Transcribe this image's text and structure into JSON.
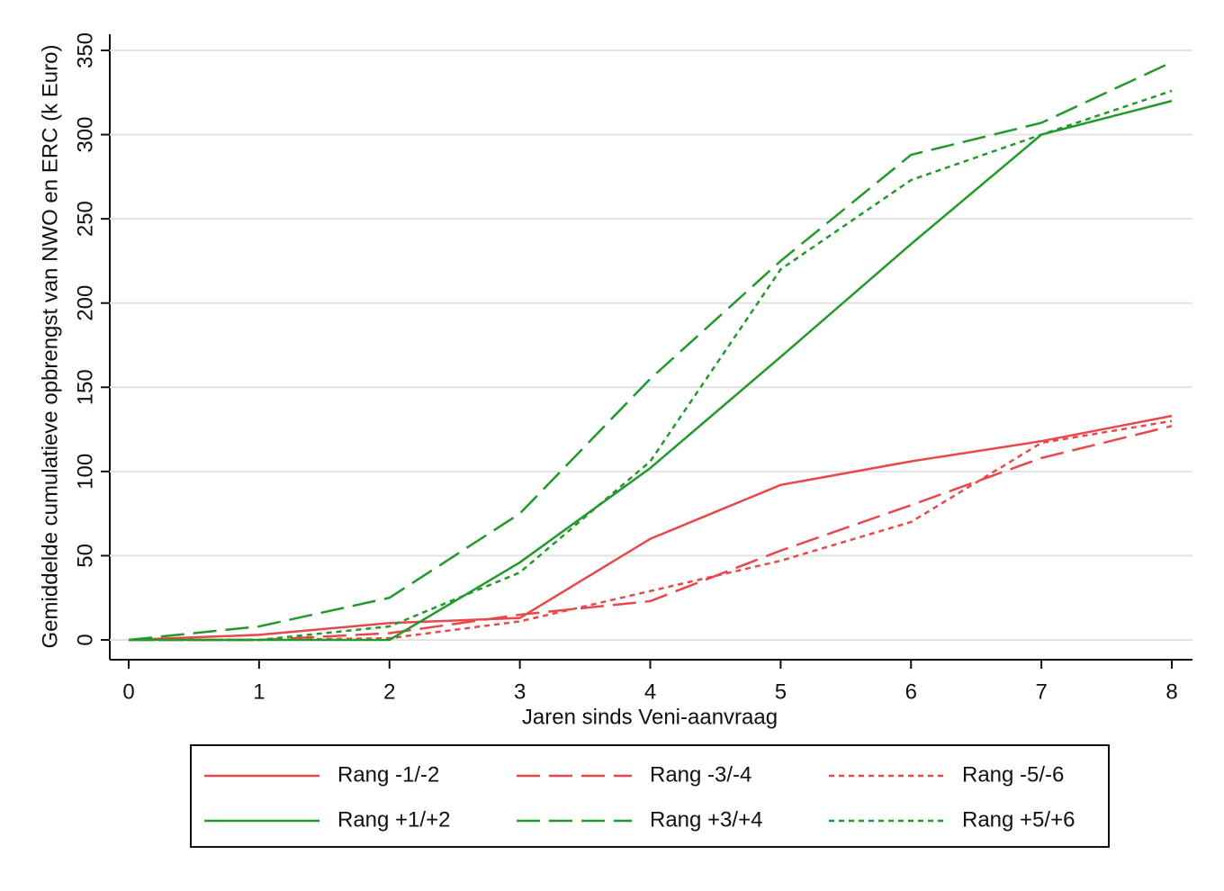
{
  "chart_data": {
    "type": "line",
    "x_label": "Jaren sinds Veni-aanvraag",
    "y_label": "Gemiddelde cumulatieve opbrengst van NWO en ERC (k Euro)",
    "x": [
      0,
      1,
      2,
      3,
      4,
      5,
      6,
      7,
      8
    ],
    "xlim": [
      0,
      8
    ],
    "xticks": [
      0,
      1,
      2,
      3,
      4,
      5,
      6,
      7,
      8
    ],
    "ylim": [
      0,
      350
    ],
    "yticks": [
      0,
      50,
      100,
      150,
      200,
      250,
      300,
      350
    ],
    "grid": true,
    "legend": "bottom",
    "series": [
      {
        "name": "Rang -1/-2",
        "color": "#e8484c",
        "dash": "solid",
        "values": [
          0,
          3,
          10,
          13,
          60,
          92,
          106,
          118,
          133
        ]
      },
      {
        "name": "Rang -3/-4",
        "color": "#e8484c",
        "dash": "long",
        "values": [
          0,
          0,
          4,
          15,
          23,
          53,
          80,
          108,
          127
        ]
      },
      {
        "name": "Rang -5/-6",
        "color": "#e8484c",
        "dash": "short",
        "values": [
          0,
          0,
          1,
          11,
          29,
          47,
          70,
          117,
          130
        ]
      },
      {
        "name": "Rang +1/+2",
        "color": "#22992a",
        "dash": "solid",
        "values": [
          0,
          0,
          0,
          46,
          102,
          168,
          235,
          300,
          320
        ]
      },
      {
        "name": "Rang +3/+4",
        "color": "#22992a",
        "dash": "long",
        "values": [
          0,
          8,
          25,
          75,
          155,
          225,
          288,
          307,
          343
        ]
      },
      {
        "name": "Rang +5/+6",
        "color": "#22992a",
        "dash": "short",
        "values": [
          0,
          0,
          8,
          40,
          106,
          220,
          273,
          300,
          326
        ]
      }
    ]
  }
}
